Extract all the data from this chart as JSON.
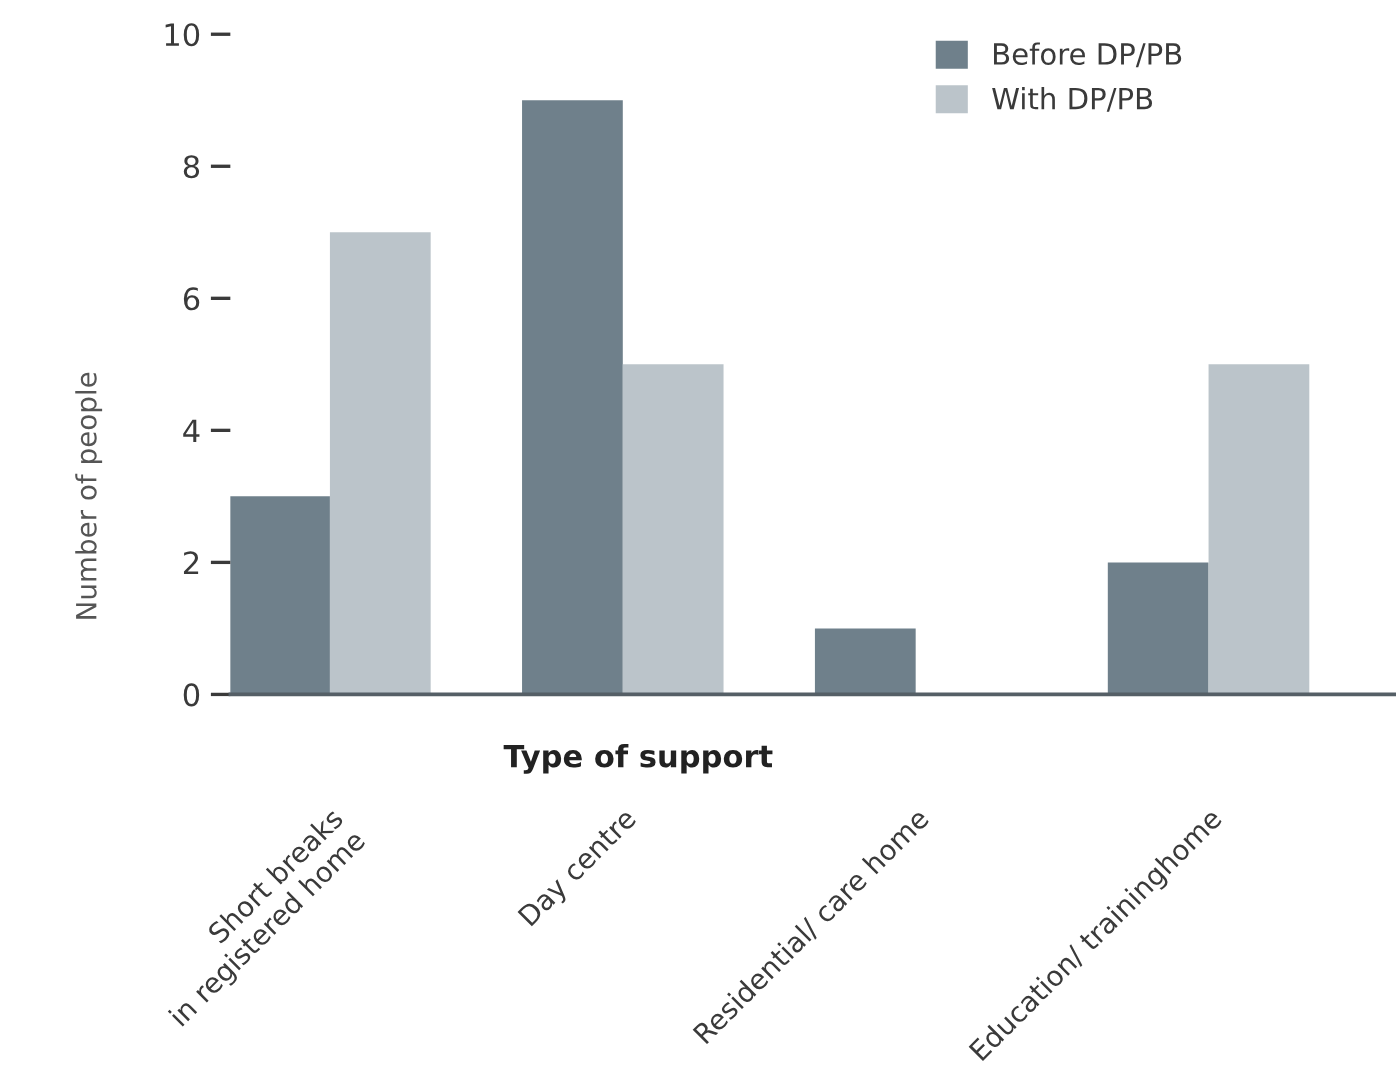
{
  "chart_data": {
    "type": "bar",
    "xlabel": "Type of support",
    "ylabel": "Number of people",
    "categories": [
      "Short breaks\nin registered home",
      "Day centre",
      "Residential/ care home",
      "Education/ traininghome"
    ],
    "series": [
      {
        "name": "Before DP/PB",
        "color": "#6f808b",
        "values": [
          3,
          9,
          1,
          2
        ]
      },
      {
        "name": "With DP/PB",
        "color": "#bbc4ca",
        "values": [
          7,
          5,
          0,
          5
        ]
      }
    ],
    "ylim": [
      0,
      10
    ],
    "yticks": [
      0,
      2,
      4,
      6,
      8,
      10
    ],
    "grid": false,
    "legend": "top right"
  }
}
